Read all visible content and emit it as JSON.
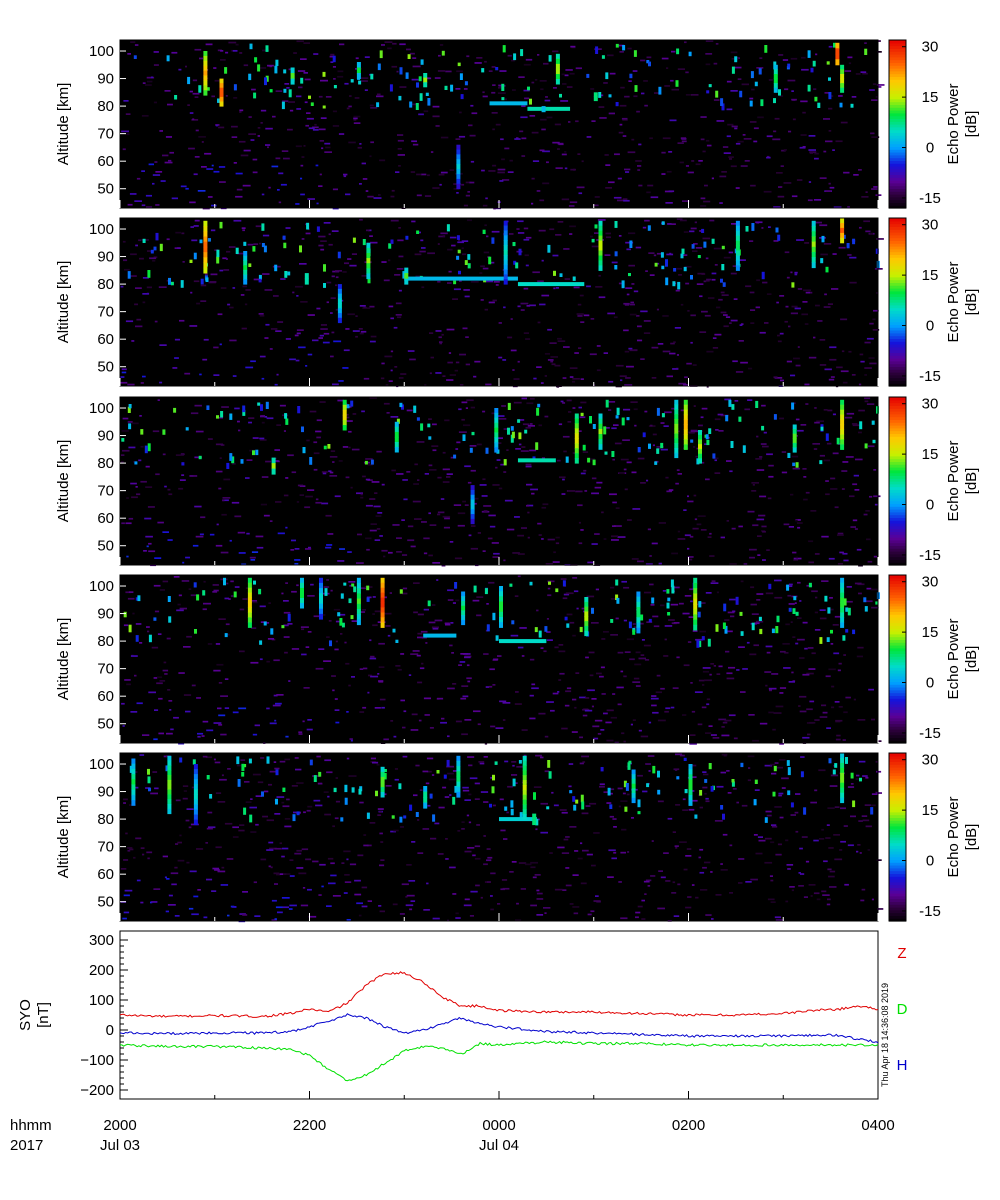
{
  "chart_data": [
    {
      "type": "heatmap",
      "panel": 1,
      "ylabel": "Altitude [km]",
      "yticks": [
        50,
        60,
        70,
        80,
        90,
        100
      ],
      "ylim": [
        43,
        104
      ],
      "xlim_hours": [
        20,
        28
      ],
      "colorbar": {
        "label": "Echo Power",
        "unit": "[dB]",
        "ticks": [
          -15,
          0,
          15,
          30
        ],
        "range": [
          -18,
          32
        ]
      },
      "features": [
        {
          "t": 20.88,
          "alt": [
            84,
            100
          ],
          "level": 22
        },
        {
          "t": 21.05,
          "alt": [
            80,
            90
          ],
          "level": 28
        },
        {
          "t": 21.8,
          "alt": [
            88,
            94
          ],
          "level": 12
        },
        {
          "t": 22.5,
          "alt": [
            90,
            96
          ],
          "level": 10
        },
        {
          "t": 23.2,
          "alt": [
            87,
            92
          ],
          "level": 14
        },
        {
          "t": 23.55,
          "alt": [
            50,
            66
          ],
          "level": 4
        },
        {
          "t": 24.45,
          "alt": [
            78,
            80
          ],
          "level": 8
        },
        {
          "t": 24.6,
          "alt": [
            88,
            99
          ],
          "level": 16
        },
        {
          "t": 25.0,
          "alt": [
            82,
            85
          ],
          "level": 14
        },
        {
          "t": 26.9,
          "alt": [
            85,
            95
          ],
          "level": 12
        },
        {
          "t": 27.55,
          "alt": [
            95,
            103
          ],
          "level": 30
        },
        {
          "t": 27.6,
          "alt": [
            85,
            95
          ],
          "level": 18
        }
      ],
      "layers": [
        {
          "t": [
            23.9,
            24.3
          ],
          "alt": 81,
          "level": 2
        },
        {
          "t": [
            24.3,
            24.75
          ],
          "alt": 79,
          "level": 6
        }
      ]
    },
    {
      "type": "heatmap",
      "panel": 2,
      "ylabel": "Altitude [km]",
      "yticks": [
        50,
        60,
        70,
        80,
        90,
        100
      ],
      "ylim": [
        43,
        104
      ],
      "xlim_hours": [
        20,
        28
      ],
      "colorbar": {
        "label": "Echo Power",
        "unit": "[dB]",
        "ticks": [
          -15,
          0,
          15,
          30
        ],
        "range": [
          -18,
          32
        ]
      },
      "features": [
        {
          "t": 20.88,
          "alt": [
            84,
            103
          ],
          "level": 26
        },
        {
          "t": 21.3,
          "alt": [
            80,
            92
          ],
          "level": 10
        },
        {
          "t": 21.95,
          "alt": [
            80,
            84
          ],
          "level": 12
        },
        {
          "t": 22.3,
          "alt": [
            66,
            80
          ],
          "level": 6
        },
        {
          "t": 22.6,
          "alt": [
            82,
            95
          ],
          "level": 14
        },
        {
          "t": 23.0,
          "alt": [
            80,
            86
          ],
          "level": 12
        },
        {
          "t": 24.05,
          "alt": [
            80,
            103
          ],
          "level": 6
        },
        {
          "t": 25.05,
          "alt": [
            85,
            103
          ],
          "level": 16
        },
        {
          "t": 26.5,
          "alt": [
            85,
            103
          ],
          "level": 10
        },
        {
          "t": 27.3,
          "alt": [
            86,
            103
          ],
          "level": 14
        },
        {
          "t": 27.6,
          "alt": [
            95,
            104
          ],
          "level": 26
        }
      ],
      "layers": [
        {
          "t": [
            23.0,
            24.2
          ],
          "alt": 82,
          "level": 2
        },
        {
          "t": [
            24.2,
            24.9
          ],
          "alt": 80,
          "level": 5
        }
      ]
    },
    {
      "type": "heatmap",
      "panel": 3,
      "ylabel": "Altitude [km]",
      "yticks": [
        50,
        60,
        70,
        80,
        90,
        100
      ],
      "ylim": [
        43,
        104
      ],
      "xlim_hours": [
        20,
        28
      ],
      "colorbar": {
        "label": "Echo Power",
        "unit": "[dB]",
        "ticks": [
          -15,
          0,
          15,
          30
        ],
        "range": [
          -18,
          32
        ]
      },
      "features": [
        {
          "t": 21.6,
          "alt": [
            76,
            82
          ],
          "level": 14
        },
        {
          "t": 22.35,
          "alt": [
            92,
            103
          ],
          "level": 20
        },
        {
          "t": 22.9,
          "alt": [
            84,
            95
          ],
          "level": 12
        },
        {
          "t": 23.7,
          "alt": [
            58,
            72
          ],
          "level": 4
        },
        {
          "t": 23.95,
          "alt": [
            84,
            100
          ],
          "level": 10
        },
        {
          "t": 24.8,
          "alt": [
            80,
            98
          ],
          "level": 18
        },
        {
          "t": 25.05,
          "alt": [
            85,
            98
          ],
          "level": 14
        },
        {
          "t": 25.85,
          "alt": [
            82,
            103
          ],
          "level": 14
        },
        {
          "t": 25.95,
          "alt": [
            85,
            103
          ],
          "level": 22
        },
        {
          "t": 26.1,
          "alt": [
            80,
            92
          ],
          "level": 16
        },
        {
          "t": 27.1,
          "alt": [
            84,
            94
          ],
          "level": 14
        },
        {
          "t": 27.6,
          "alt": [
            85,
            103
          ],
          "level": 20
        }
      ],
      "layers": [
        {
          "t": [
            24.2,
            24.6
          ],
          "alt": 81,
          "level": 6
        }
      ]
    },
    {
      "type": "heatmap",
      "panel": 4,
      "ylabel": "Altitude [km]",
      "yticks": [
        50,
        60,
        70,
        80,
        90,
        100
      ],
      "ylim": [
        43,
        104
      ],
      "xlim_hours": [
        20,
        28
      ],
      "colorbar": {
        "label": "Echo Power",
        "unit": "[dB]",
        "ticks": [
          -15,
          0,
          15,
          30
        ],
        "range": [
          -18,
          32
        ]
      },
      "features": [
        {
          "t": 21.35,
          "alt": [
            85,
            103
          ],
          "level": 20
        },
        {
          "t": 21.9,
          "alt": [
            92,
            103
          ],
          "level": 12
        },
        {
          "t": 22.1,
          "alt": [
            88,
            103
          ],
          "level": 6
        },
        {
          "t": 22.5,
          "alt": [
            86,
            103
          ],
          "level": 12
        },
        {
          "t": 22.75,
          "alt": [
            85,
            103
          ],
          "level": 30
        },
        {
          "t": 23.6,
          "alt": [
            86,
            98
          ],
          "level": 10
        },
        {
          "t": 24.0,
          "alt": [
            85,
            100
          ],
          "level": 12
        },
        {
          "t": 24.9,
          "alt": [
            82,
            96
          ],
          "level": 16
        },
        {
          "t": 25.45,
          "alt": [
            83,
            98
          ],
          "level": 10
        },
        {
          "t": 26.05,
          "alt": [
            84,
            103
          ],
          "level": 18
        },
        {
          "t": 27.6,
          "alt": [
            85,
            103
          ],
          "level": 12
        }
      ],
      "layers": [
        {
          "t": [
            23.2,
            23.55
          ],
          "alt": 82,
          "level": 2
        },
        {
          "t": [
            24.0,
            24.5
          ],
          "alt": 80,
          "level": 5
        }
      ]
    },
    {
      "type": "heatmap",
      "panel": 5,
      "ylabel": "Altitude [km]",
      "yticks": [
        50,
        60,
        70,
        80,
        90,
        100
      ],
      "ylim": [
        43,
        104
      ],
      "xlim_hours": [
        20,
        28
      ],
      "colorbar": {
        "label": "Echo Power",
        "unit": "[dB]",
        "ticks": [
          -15,
          0,
          15,
          30
        ],
        "range": [
          -18,
          32
        ]
      },
      "features": [
        {
          "t": 20.12,
          "alt": [
            85,
            102
          ],
          "level": 10
        },
        {
          "t": 20.5,
          "alt": [
            82,
            103
          ],
          "level": 14
        },
        {
          "t": 20.78,
          "alt": [
            78,
            100
          ],
          "level": 6
        },
        {
          "t": 22.75,
          "alt": [
            88,
            99
          ],
          "level": 14
        },
        {
          "t": 23.2,
          "alt": [
            84,
            92
          ],
          "level": 10
        },
        {
          "t": 23.55,
          "alt": [
            88,
            103
          ],
          "level": 10
        },
        {
          "t": 24.25,
          "alt": [
            80,
            103
          ],
          "level": 16
        },
        {
          "t": 24.35,
          "alt": [
            78,
            82
          ],
          "level": 14
        },
        {
          "t": 25.4,
          "alt": [
            86,
            98
          ],
          "level": 10
        },
        {
          "t": 26.0,
          "alt": [
            85,
            100
          ],
          "level": 12
        },
        {
          "t": 27.6,
          "alt": [
            86,
            104
          ],
          "level": 14
        }
      ],
      "layers": [
        {
          "t": [
            24.0,
            24.4
          ],
          "alt": 80,
          "level": 4
        }
      ]
    },
    {
      "type": "line",
      "ylabel": "SYO",
      "yunit": "[nT]",
      "yticks": [
        -200,
        -100,
        0,
        100,
        200,
        300
      ],
      "ylim": [
        -230,
        330
      ],
      "xlim_hours": [
        20,
        28
      ],
      "side_label": "Thu Apr 18 14:36:08 2019",
      "series": [
        {
          "name": "Z",
          "color": "#e00000",
          "x": [
            20.0,
            20.5,
            21.0,
            21.5,
            21.8,
            22.0,
            22.2,
            22.4,
            22.6,
            22.8,
            23.0,
            23.2,
            23.4,
            23.6,
            23.8,
            24.0,
            24.5,
            25.0,
            25.5,
            26.0,
            26.5,
            27.0,
            27.3,
            27.6,
            27.8,
            28.0
          ],
          "y": [
            50,
            45,
            48,
            45,
            55,
            70,
            60,
            90,
            150,
            190,
            190,
            160,
            110,
            80,
            80,
            65,
            60,
            60,
            55,
            50,
            50,
            55,
            65,
            70,
            80,
            70
          ]
        },
        {
          "name": "D",
          "color": "#00e000",
          "x": [
            20.0,
            20.5,
            21.0,
            21.5,
            21.8,
            22.0,
            22.2,
            22.4,
            22.6,
            22.8,
            23.0,
            23.2,
            23.4,
            23.6,
            23.8,
            24.0,
            24.5,
            25.0,
            25.5,
            26.0,
            26.5,
            27.0,
            27.5,
            28.0
          ],
          "y": [
            -50,
            -55,
            -55,
            -60,
            -65,
            -85,
            -130,
            -170,
            -150,
            -110,
            -70,
            -55,
            -60,
            -80,
            -45,
            -50,
            -40,
            -45,
            -45,
            -50,
            -50,
            -50,
            -50,
            -50
          ]
        },
        {
          "name": "H",
          "color": "#0000cc",
          "x": [
            20.0,
            20.5,
            21.0,
            21.5,
            21.8,
            22.0,
            22.2,
            22.4,
            22.6,
            22.8,
            23.0,
            23.2,
            23.4,
            23.6,
            23.8,
            24.0,
            24.5,
            25.0,
            25.5,
            26.0,
            26.5,
            27.0,
            27.5,
            27.8,
            28.0
          ],
          "y": [
            -10,
            -12,
            -10,
            -10,
            -5,
            10,
            30,
            50,
            40,
            10,
            -10,
            0,
            20,
            40,
            20,
            10,
            -5,
            -10,
            -15,
            -20,
            -20,
            -20,
            -15,
            -30,
            -40
          ]
        }
      ]
    },
    {
      "type": "axis",
      "row1_label": "hhmm",
      "row2_label": "2017",
      "ticks": [
        {
          "t": 20,
          "label": "2000"
        },
        {
          "t": 22,
          "label": "2200"
        },
        {
          "t": 24,
          "label": "0000"
        },
        {
          "t": 26,
          "label": "0200"
        },
        {
          "t": 28,
          "label": "0400"
        }
      ],
      "dates": [
        {
          "t": 20,
          "label": "Jul 03"
        },
        {
          "t": 24,
          "label": "Jul 04"
        }
      ]
    }
  ]
}
